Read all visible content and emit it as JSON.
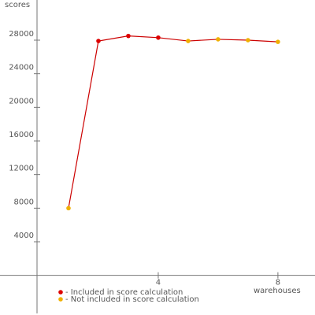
{
  "chart_data": {
    "type": "line",
    "y_label": "scores",
    "x_label": "warehouses",
    "x": [
      1,
      2,
      3,
      4,
      5,
      6,
      7,
      8
    ],
    "values": [
      8000,
      27900,
      28500,
      28300,
      27900,
      28100,
      28000,
      27800
    ],
    "line_color": "#cc0000",
    "point_groups": [
      1,
      0,
      0,
      0,
      1,
      1,
      1,
      1
    ],
    "legend": [
      {
        "label": "- Included in score calculation",
        "color": "#dd0000"
      },
      {
        "label": "- Not included in score calculation",
        "color": "#f0b000"
      }
    ],
    "xlim": [
      -1.29,
      9.24
    ],
    "ylim": [
      -4530,
      32780
    ],
    "xticks": [
      4,
      8
    ],
    "yticks": [
      4000,
      8000,
      12000,
      16000,
      20000,
      24000,
      28000
    ]
  }
}
